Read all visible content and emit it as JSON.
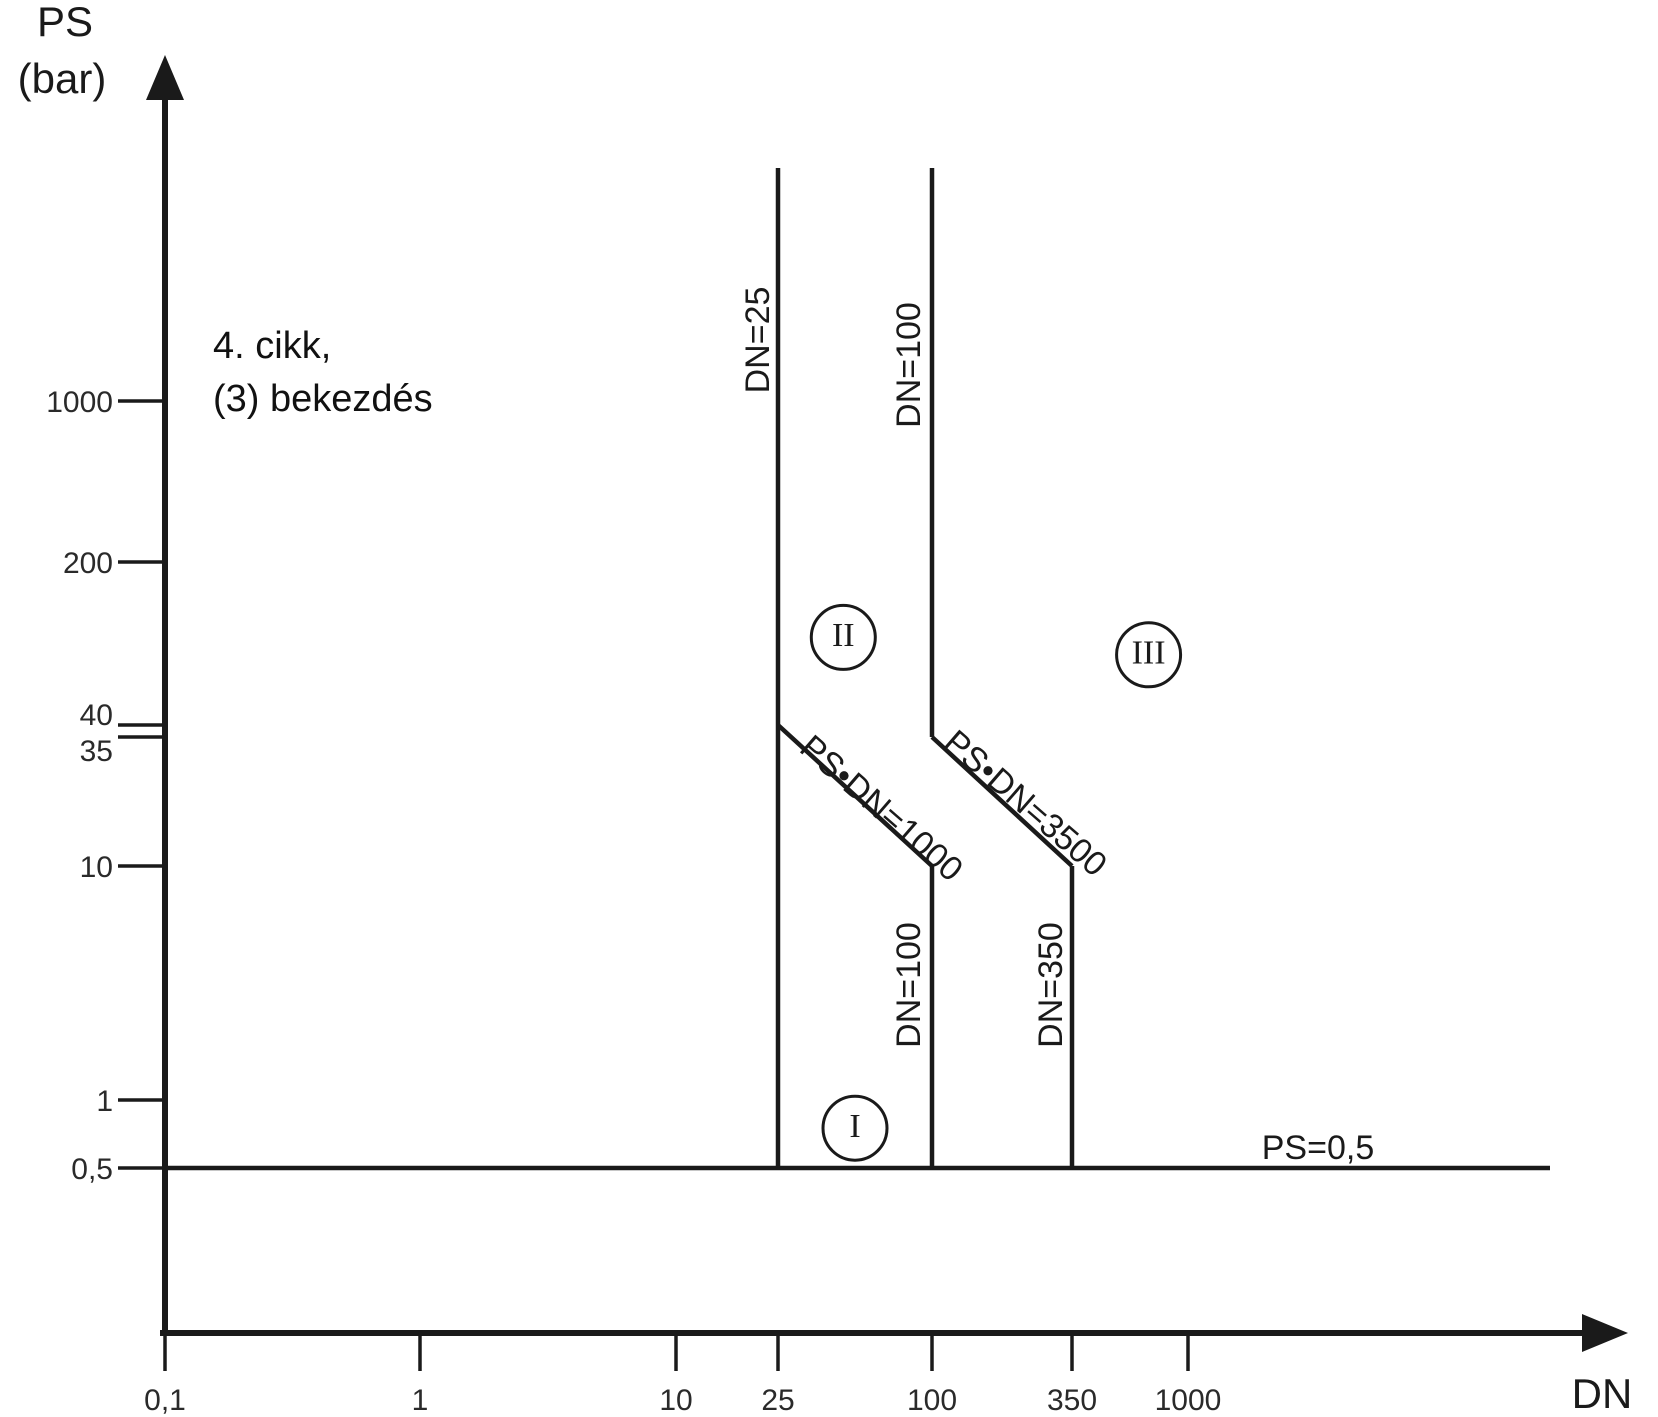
{
  "chart_data": {
    "type": "line",
    "title": "",
    "xlabel": "DN",
    "ylabel_line1": "PS",
    "ylabel_line2": "(bar)",
    "x_scale": "log",
    "y_scale": "log",
    "x_ticks": [
      {
        "value": 0.1,
        "label": "0,1"
      },
      {
        "value": 1,
        "label": "1"
      },
      {
        "value": 10,
        "label": "10"
      },
      {
        "value": 25,
        "label": "25"
      },
      {
        "value": 100,
        "label": "100"
      },
      {
        "value": 350,
        "label": "350"
      },
      {
        "value": 1000,
        "label": "1000"
      }
    ],
    "y_ticks": [
      {
        "value": 0.5,
        "label": "0,5"
      },
      {
        "value": 1,
        "label": "1"
      },
      {
        "value": 10,
        "label": "10"
      },
      {
        "value": 35,
        "label": "35"
      },
      {
        "value": 40,
        "label": "40"
      },
      {
        "value": 200,
        "label": "200"
      },
      {
        "value": 1000,
        "label": "1000"
      }
    ],
    "annotation": {
      "line1": "4. cikk,",
      "line2": "(3) bekezdés"
    },
    "boundaries": [
      {
        "id": "ps-0-5-line",
        "label": "PS=0,5",
        "points": [
          [
            0.1,
            0.5
          ],
          [
            30000,
            0.5
          ]
        ]
      },
      {
        "id": "dn-25-line",
        "label": "DN=25",
        "points": [
          [
            25,
            0.5
          ],
          [
            25,
            7000
          ]
        ]
      },
      {
        "id": "boundary-1000",
        "label": "PS•DN=1000",
        "points": [
          [
            25,
            40
          ],
          [
            100,
            10
          ]
        ]
      },
      {
        "id": "dn-100-lower-line",
        "label": "DN=100",
        "points": [
          [
            100,
            10
          ],
          [
            100,
            0.5
          ]
        ]
      },
      {
        "id": "dn-100-upper-line",
        "label": "DN=100",
        "points": [
          [
            100,
            35
          ],
          [
            100,
            7000
          ]
        ]
      },
      {
        "id": "boundary-3500",
        "label": "PS•DN=3500",
        "points": [
          [
            100,
            35
          ],
          [
            350,
            10
          ]
        ]
      },
      {
        "id": "dn-350-line",
        "label": "DN=350",
        "points": [
          [
            350,
            10
          ],
          [
            350,
            0.5
          ]
        ]
      }
    ],
    "categories": [
      {
        "id": "I",
        "label": "I",
        "x": 50,
        "y": 0.75
      },
      {
        "id": "II",
        "label": "II",
        "x": 45,
        "y": 95
      },
      {
        "id": "III",
        "label": "III",
        "x": 700,
        "y": 80
      }
    ]
  }
}
